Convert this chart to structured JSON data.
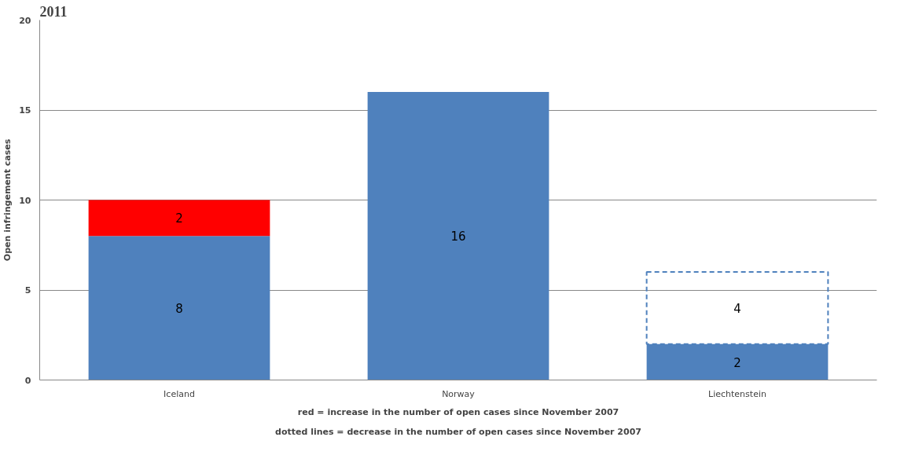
{
  "chart_data": {
    "type": "bar",
    "title": "2011",
    "ylabel": "Open infringement cases",
    "categories": [
      "Iceland",
      "Norway",
      "Liechtenstein"
    ],
    "stacked": true,
    "series": [
      {
        "color": "#4f81bd",
        "values": [
          8,
          16,
          2
        ]
      },
      {
        "color": "#ff0000",
        "values": [
          2,
          null,
          null
        ]
      },
      {
        "color": "#4f81bd",
        "values": [
          null,
          null,
          4
        ],
        "line_style": "dashed"
      }
    ],
    "ylim": [
      0,
      20
    ],
    "yticks": [
      0,
      5,
      10,
      15,
      20
    ],
    "grid": "y",
    "data_labels": true,
    "annotations": [
      "red = increase in the number of open cases since November 2007",
      "dotted lines = decrease in the number of open cases since November 2007"
    ]
  }
}
